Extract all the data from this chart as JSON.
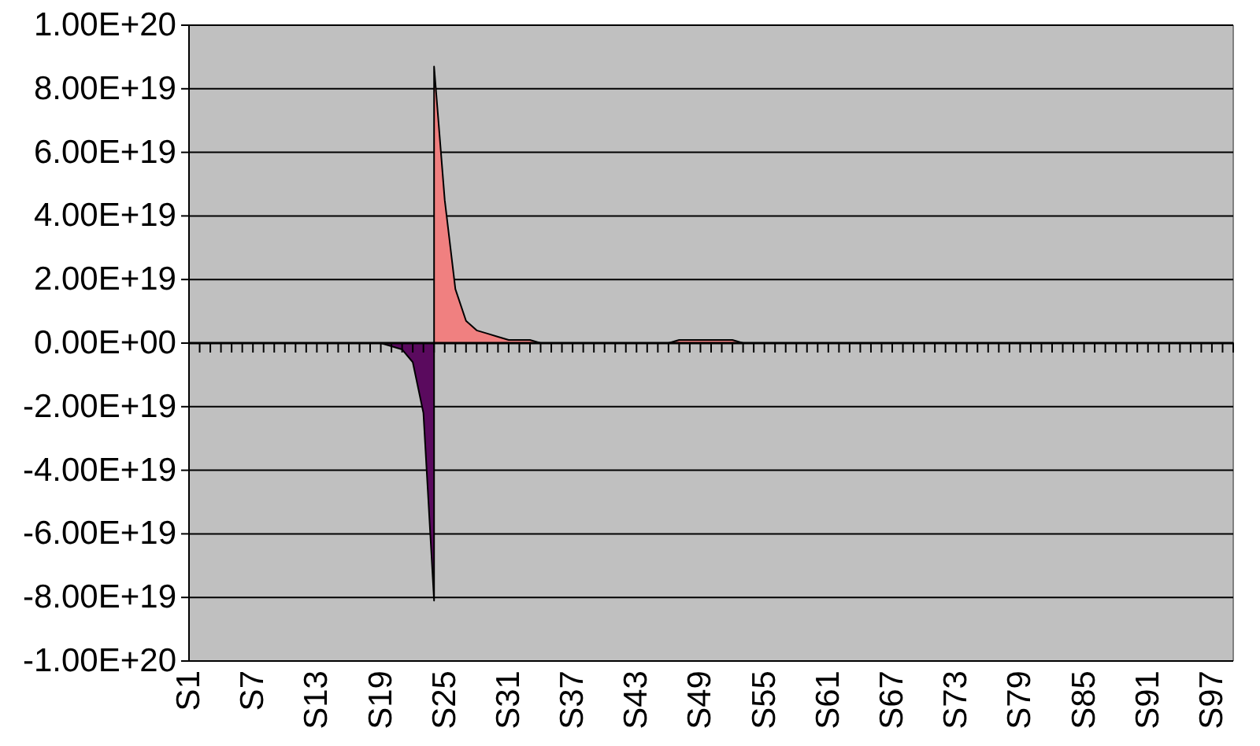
{
  "chart_data": {
    "type": "area",
    "categories": [
      "S1",
      null,
      null,
      null,
      null,
      null,
      "S7",
      null,
      null,
      null,
      null,
      null,
      "S13",
      null,
      null,
      null,
      null,
      null,
      "S19",
      null,
      null,
      null,
      null,
      null,
      "S25",
      null,
      null,
      null,
      null,
      null,
      "S31",
      null,
      null,
      null,
      null,
      null,
      "S37",
      null,
      null,
      null,
      null,
      null,
      "S43",
      null,
      null,
      null,
      null,
      null,
      "S49",
      null,
      null,
      null,
      null,
      null,
      "S55",
      null,
      null,
      null,
      null,
      null,
      "S61",
      null,
      null,
      null,
      null,
      null,
      "S67",
      null,
      null,
      null,
      null,
      null,
      "S73",
      null,
      null,
      null,
      null,
      null,
      "S79",
      null,
      null,
      null,
      null,
      null,
      "S85",
      null,
      null,
      null,
      null,
      null,
      "S91",
      null,
      null,
      null,
      null,
      null,
      "S97",
      null,
      null
    ],
    "series": [
      {
        "color": "#5a0a5e",
        "values": [
          0,
          0,
          0,
          0,
          0,
          0,
          0,
          0,
          0,
          0,
          0,
          0,
          0,
          0,
          0,
          0,
          0,
          0,
          0,
          -1e+18,
          -2e+18,
          -6e+18,
          -2.2e+19,
          -8.1e+19,
          null,
          null,
          null,
          null,
          null,
          null,
          null,
          null,
          null,
          null,
          null,
          null,
          null,
          null,
          null,
          null,
          null,
          null,
          null,
          null,
          null,
          null,
          null,
          null,
          null,
          null,
          null,
          null,
          null,
          null,
          null,
          null,
          null,
          null,
          null,
          null,
          null,
          null,
          null,
          null,
          null,
          null,
          null,
          null,
          null,
          null,
          null,
          null,
          null,
          null,
          null,
          null,
          null,
          null,
          null,
          null,
          null,
          null,
          null,
          null,
          null,
          null,
          null,
          null,
          null,
          null,
          null,
          null,
          null,
          null,
          null,
          null,
          null,
          null,
          null
        ]
      },
      {
        "color": "#f08080",
        "values": [
          null,
          null,
          null,
          null,
          null,
          null,
          null,
          null,
          null,
          null,
          null,
          null,
          null,
          null,
          null,
          null,
          null,
          null,
          null,
          null,
          null,
          null,
          null,
          8.7e+19,
          4.5e+19,
          1.7e+19,
          7e+18,
          4e+18,
          3e+18,
          2e+18,
          1e+18,
          1e+18,
          1e+18,
          0,
          0,
          0,
          0,
          0,
          0,
          0,
          0,
          0,
          0,
          0,
          0,
          0,
          1e+18,
          1e+18,
          1e+18,
          1e+18,
          1e+18,
          1e+18,
          0,
          0,
          0,
          0,
          0,
          0,
          0,
          0,
          0,
          0,
          0,
          0,
          0,
          0,
          0,
          0,
          0,
          0,
          0,
          0,
          0,
          0,
          0,
          0,
          0,
          0,
          0,
          0,
          0,
          0,
          0,
          0,
          0,
          0,
          0,
          0,
          0,
          0,
          0,
          0,
          0,
          0,
          0,
          0,
          0,
          0,
          0
        ]
      }
    ],
    "ylim": [
      -1e+20,
      1e+20
    ],
    "yticks": [
      {
        "value": 1e+20,
        "label": "1.00E+20"
      },
      {
        "value": 8e+19,
        "label": "8.00E+19"
      },
      {
        "value": 6e+19,
        "label": "6.00E+19"
      },
      {
        "value": 4e+19,
        "label": "4.00E+19"
      },
      {
        "value": 2e+19,
        "label": "2.00E+19"
      },
      {
        "value": 0,
        "label": "0.00E+00"
      },
      {
        "value": -2e+19,
        "label": "-2.00E+19"
      },
      {
        "value": -4e+19,
        "label": "-4.00E+19"
      },
      {
        "value": -6e+19,
        "label": "-6.00E+19"
      },
      {
        "value": -8e+19,
        "label": "-8.00E+19"
      },
      {
        "value": -1e+20,
        "label": "-1.00E+20"
      }
    ],
    "grid": "y"
  }
}
